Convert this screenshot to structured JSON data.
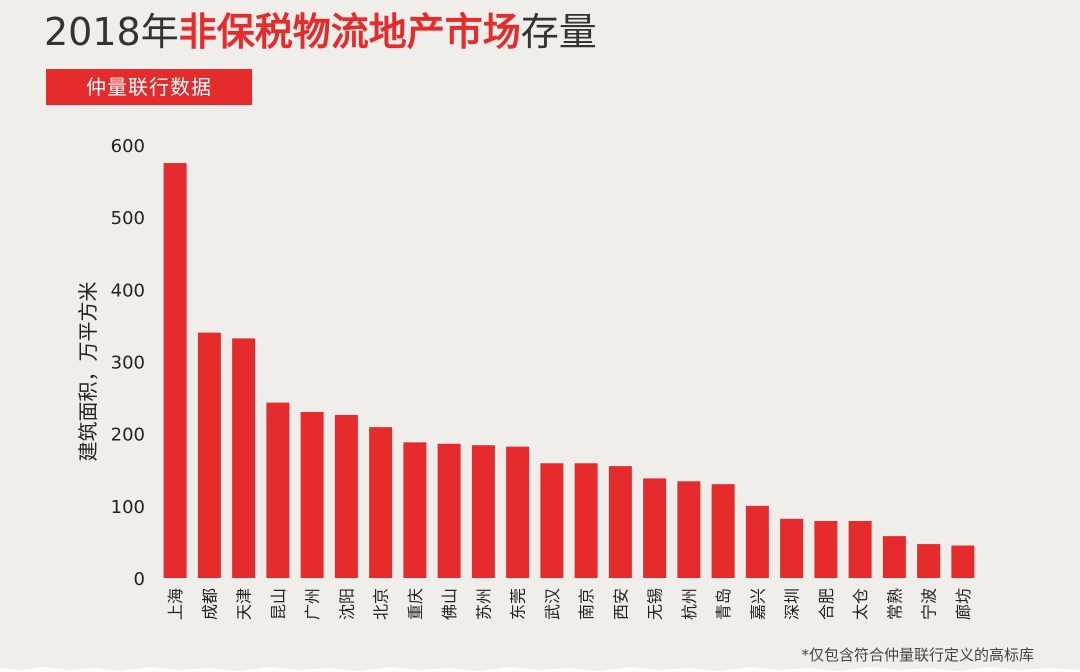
{
  "title": {
    "prefix": "2018年",
    "highlight": "非保税物流地产市场",
    "suffix": "存量"
  },
  "subtitle": "仲量联行数据",
  "footnote": "*仅包含符合仲量联行定义的高标库",
  "colors": {
    "bar": "#e52b2b",
    "accent": "#e52b2b",
    "text": "#222222",
    "background": "#f0eeea"
  },
  "chart_data": {
    "type": "bar",
    "ylabel": "建筑面积，万平方米",
    "xlabel": "",
    "ylim": [
      0,
      600
    ],
    "yticks": [
      0,
      100,
      200,
      300,
      400,
      500,
      600
    ],
    "grid": false,
    "categories": [
      "上海",
      "成都",
      "天津",
      "昆山",
      "广州",
      "沈阳",
      "北京",
      "重庆",
      "佛山",
      "苏州",
      "东莞",
      "武汉",
      "南京",
      "西安",
      "无锡",
      "杭州",
      "青岛",
      "嘉兴",
      "深圳",
      "合肥",
      "太仓",
      "常熟",
      "宁波",
      "廊坊"
    ],
    "values": [
      575,
      340,
      332,
      243,
      230,
      226,
      209,
      188,
      186,
      184,
      182,
      159,
      159,
      155,
      138,
      134,
      130,
      100,
      82,
      79,
      79,
      58,
      47,
      45
    ]
  }
}
